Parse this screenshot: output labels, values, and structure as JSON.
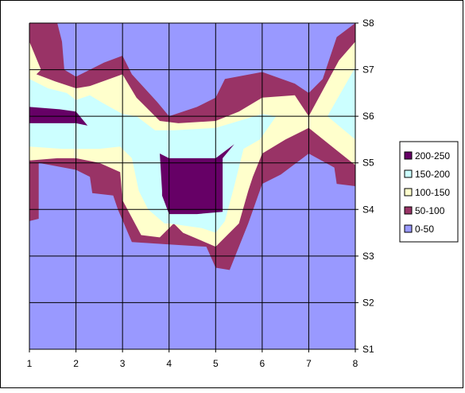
{
  "chart_data": {
    "type": "contour",
    "x_categories": [
      "1",
      "2",
      "3",
      "4",
      "5",
      "6",
      "7",
      "8"
    ],
    "y_categories": [
      "S1",
      "S2",
      "S3",
      "S4",
      "S5",
      "S6",
      "S7",
      "S8"
    ],
    "y_axis_side": "right",
    "grid": true,
    "legend": {
      "position": "right",
      "entries": [
        {
          "name": "200-250",
          "color": "#660066"
        },
        {
          "name": "150-200",
          "color": "#CCFFFF"
        },
        {
          "name": "100-150",
          "color": "#FFFFCC"
        },
        {
          "name": "50-100",
          "color": "#993366"
        },
        {
          "name": "0-50",
          "color": "#9999FF"
        }
      ]
    },
    "bands": [
      {
        "range": "50-100",
        "color": "#993366",
        "polygons": [
          [
            [
              1,
              8
            ],
            [
              1.6,
              8
            ],
            [
              1.7,
              7.6
            ],
            [
              1.75,
              7
            ],
            [
              2,
              6.85
            ],
            [
              2.6,
              7.15
            ],
            [
              3,
              7.3
            ],
            [
              3.2,
              6.9
            ],
            [
              3.75,
              6.3
            ],
            [
              4,
              6
            ],
            [
              4.6,
              6.2
            ],
            [
              5,
              6.4
            ],
            [
              5.2,
              6.8
            ],
            [
              6,
              6.95
            ],
            [
              6.7,
              6.7
            ],
            [
              7,
              6.5
            ],
            [
              7.3,
              6.8
            ],
            [
              7.6,
              7.7
            ],
            [
              8,
              8
            ],
            [
              8,
              4.5
            ],
            [
              7.6,
              4.55
            ],
            [
              7.55,
              4.9
            ],
            [
              7,
              5.2
            ],
            [
              6.4,
              4.75
            ],
            [
              6,
              4.55
            ],
            [
              5.7,
              3.7
            ],
            [
              5.5,
              3.2
            ],
            [
              5.3,
              2.7
            ],
            [
              5,
              2.75
            ],
            [
              4.8,
              3.2
            ],
            [
              4,
              3.25
            ],
            [
              3.2,
              3.3
            ],
            [
              2.9,
              4
            ],
            [
              2.8,
              4.3
            ],
            [
              2.35,
              4.35
            ],
            [
              2.3,
              4.7
            ],
            [
              2,
              4.85
            ],
            [
              1.2,
              5
            ],
            [
              1.2,
              3.8
            ],
            [
              1,
              3.75
            ]
          ]
        ]
      },
      {
        "range": "100-150",
        "color": "#FFFFCC",
        "polygons": [
          [
            [
              1,
              7.6
            ],
            [
              1.25,
              7
            ],
            [
              1.15,
              6.9
            ],
            [
              1.55,
              6.75
            ],
            [
              2,
              6.6
            ],
            [
              2.3,
              6.65
            ],
            [
              3,
              6.9
            ],
            [
              3.3,
              6.4
            ],
            [
              3.8,
              5.9
            ],
            [
              4.2,
              5.85
            ],
            [
              5,
              5.9
            ],
            [
              5.5,
              6.1
            ],
            [
              6,
              6.4
            ],
            [
              6.7,
              6.45
            ],
            [
              7,
              6
            ],
            [
              7.65,
              7.2
            ],
            [
              8,
              7.6
            ],
            [
              8,
              4.95
            ],
            [
              7.5,
              5.35
            ],
            [
              7,
              5.75
            ],
            [
              6.5,
              5.5
            ],
            [
              6,
              5.2
            ],
            [
              5.8,
              4.7
            ],
            [
              5.7,
              4.4
            ],
            [
              5.5,
              3.7
            ],
            [
              5,
              3.2
            ],
            [
              4.3,
              3.5
            ],
            [
              4.1,
              3.7
            ],
            [
              3.8,
              3.4
            ],
            [
              3.4,
              3.45
            ],
            [
              3,
              4.2
            ],
            [
              2.95,
              4.8
            ],
            [
              2.5,
              5
            ],
            [
              2,
              5.1
            ],
            [
              1.6,
              5.1
            ],
            [
              1,
              5.05
            ]
          ]
        ]
      },
      {
        "range": "150-200",
        "color": "#CCFFFF",
        "polygons": [
          [
            [
              1,
              6.8
            ],
            [
              1.4,
              6.6
            ],
            [
              1.8,
              6.5
            ],
            [
              2,
              6.35
            ],
            [
              2.3,
              6.45
            ],
            [
              2.55,
              6.3
            ],
            [
              3,
              6.05
            ],
            [
              3.3,
              6
            ],
            [
              3.7,
              5.7
            ],
            [
              4.1,
              5.7
            ],
            [
              5,
              5.75
            ],
            [
              5.5,
              5.9
            ],
            [
              6,
              6.05
            ],
            [
              6.3,
              6
            ],
            [
              5.95,
              5.5
            ],
            [
              5.6,
              5.3
            ],
            [
              5.4,
              4.5
            ],
            [
              5.2,
              3.75
            ],
            [
              5,
              3.5
            ],
            [
              4.7,
              3.6
            ],
            [
              4,
              3.7
            ],
            [
              3.9,
              3.7
            ],
            [
              3.55,
              4
            ],
            [
              3.35,
              4.4
            ],
            [
              3.2,
              5.1
            ],
            [
              2.95,
              5.35
            ],
            [
              2.5,
              5.3
            ],
            [
              2,
              5.3
            ],
            [
              1.7,
              5.3
            ],
            [
              1,
              5.35
            ]
          ],
          [
            [
              8,
              7.05
            ],
            [
              7.4,
              6
            ],
            [
              8,
              5.5
            ]
          ]
        ]
      },
      {
        "range": "200-250",
        "color": "#660066",
        "polygons": [
          [
            [
              1,
              6.2
            ],
            [
              1.65,
              6.15
            ],
            [
              2,
              6.1
            ],
            [
              2.25,
              5.8
            ],
            [
              2,
              5.85
            ],
            [
              1,
              5.85
            ]
          ],
          [
            [
              3.8,
              5.2
            ],
            [
              4,
              5.1
            ],
            [
              5,
              5.1
            ],
            [
              5.4,
              5.4
            ],
            [
              5.15,
              5.1
            ],
            [
              5.15,
              3.95
            ],
            [
              4.6,
              3.9
            ],
            [
              4,
              3.9
            ],
            [
              3.85,
              4.3
            ],
            [
              3.85,
              4.4
            ]
          ]
        ]
      }
    ]
  }
}
